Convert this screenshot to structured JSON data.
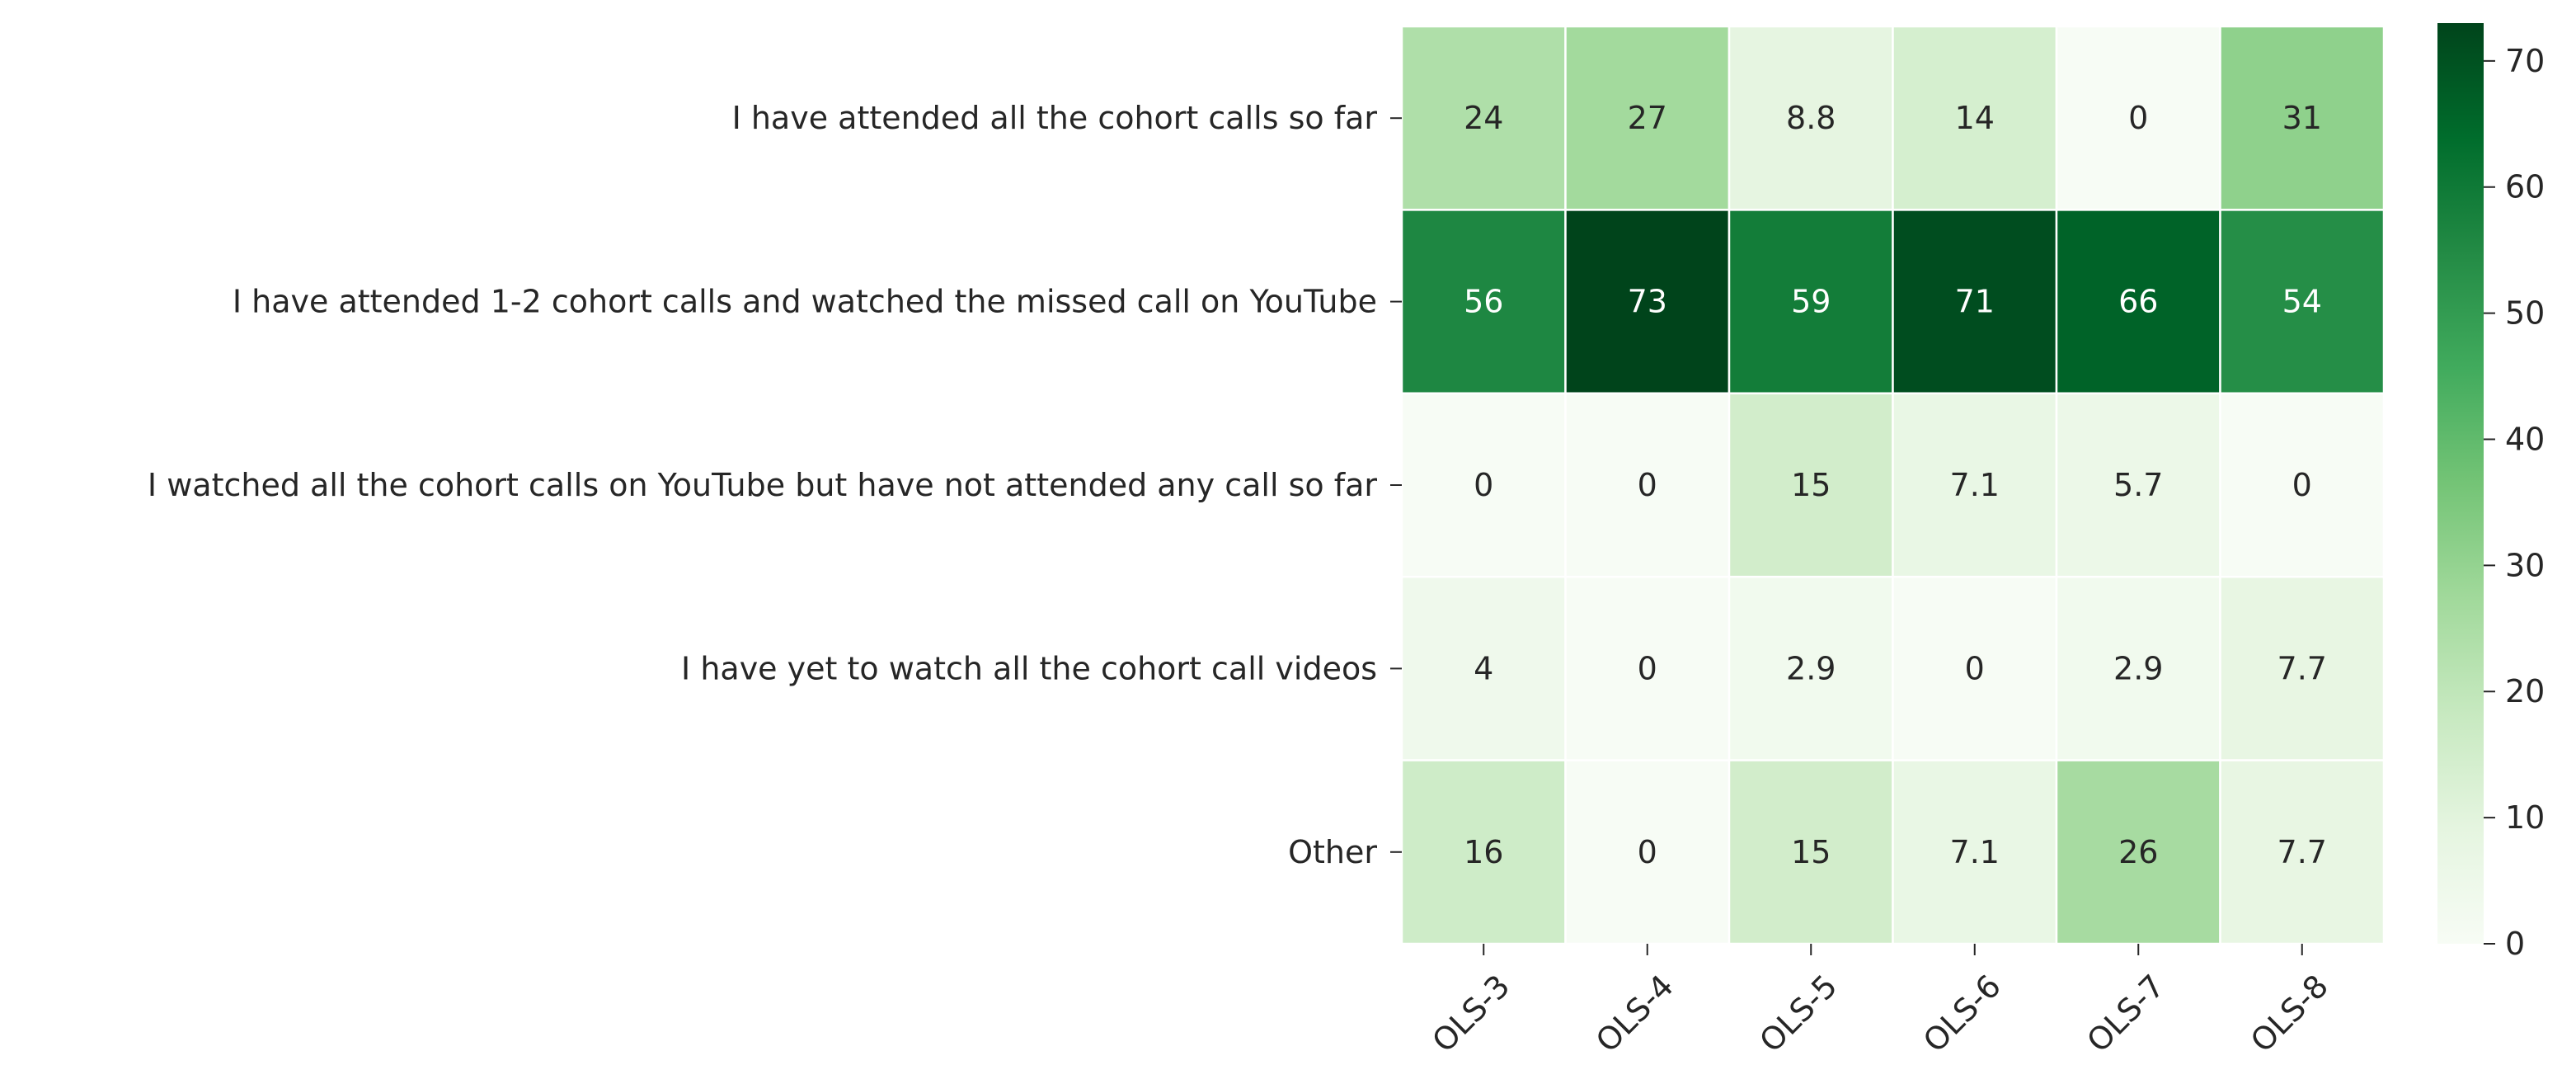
{
  "chart_data": {
    "type": "heatmap",
    "title": "",
    "xlabel": "",
    "ylabel": "",
    "x_categories": [
      "OLS-3",
      "OLS-4",
      "OLS-5",
      "OLS-6",
      "OLS-7",
      "OLS-8"
    ],
    "y_categories": [
      "I have attended all the cohort calls so far",
      "I have attended 1-2 cohort calls and watched the missed call on YouTube",
      "I watched all the cohort calls on YouTube but have not attended any call so far",
      "I have yet to watch all the cohort call videos",
      "Other"
    ],
    "values": [
      [
        24,
        27,
        8.8,
        14,
        0,
        31
      ],
      [
        56,
        73,
        59,
        71,
        66,
        54
      ],
      [
        0,
        0,
        15,
        7.1,
        5.7,
        0
      ],
      [
        4,
        0,
        2.9,
        0,
        2.9,
        7.7
      ],
      [
        16,
        0,
        15,
        7.1,
        26,
        7.7
      ]
    ],
    "annotations_shown": true,
    "colormap": "Greens",
    "colorbar": {
      "range": [
        0,
        73
      ],
      "ticks": [
        0,
        10,
        20,
        30,
        40,
        50,
        60,
        70
      ],
      "position": "right"
    },
    "cell_border_color": "#ffffff",
    "x_tick_rotation_deg": 45
  }
}
